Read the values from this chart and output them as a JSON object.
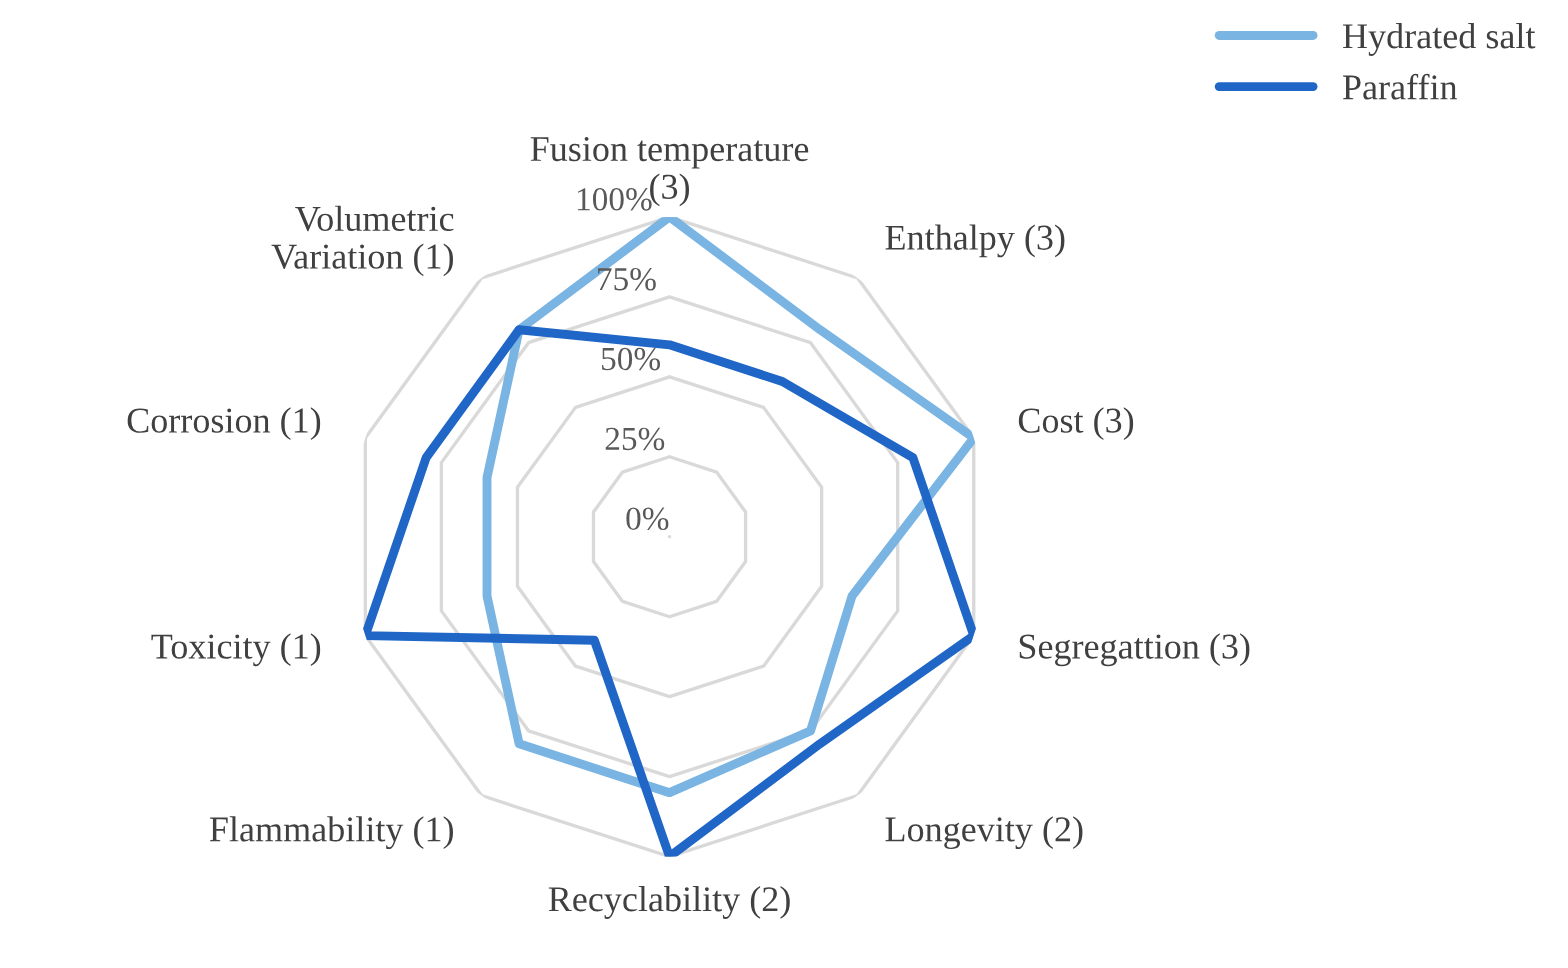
{
  "chart_data": {
    "type": "radar",
    "categories": [
      "Fusion temperature\n(3)",
      "Enthalpy (3)",
      "Cost (3)",
      "Segregattion (3)",
      "Longevity (2)",
      "Recyclability (2)",
      "Flammability (1)",
      "Toxicity (1)",
      "Corrosion (1)",
      "Volumetric\nVariation (1)"
    ],
    "series": [
      {
        "name": "Hydrated salt",
        "color": "#7ab4e2",
        "values": [
          1.0,
          0.8,
          1.0,
          0.6,
          0.75,
          0.8,
          0.8,
          0.6,
          0.6,
          0.8
        ]
      },
      {
        "name": "Paraffin",
        "color": "#1f66c7",
        "values": [
          0.6,
          0.6,
          0.8,
          1.0,
          0.8,
          1.0,
          0.4,
          1.0,
          0.8,
          0.8
        ]
      }
    ],
    "ylim": [
      0,
      1
    ],
    "yticks": [
      {
        "value": 0,
        "label": "0%"
      },
      {
        "value": 0.25,
        "label": "25%"
      },
      {
        "value": 0.5,
        "label": "50%"
      },
      {
        "value": 0.75,
        "label": "75%"
      },
      {
        "value": 1,
        "label": "100%"
      }
    ],
    "grid": true,
    "legend": "top right",
    "marker": "none",
    "line_style": "solid"
  }
}
